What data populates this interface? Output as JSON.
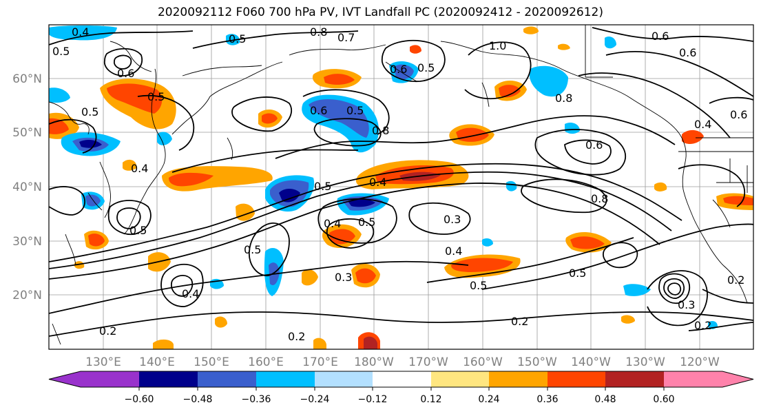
{
  "title": "2020092112 F060 700 hPa PV, IVT Landfall PC (2020092412 - 2020092612)",
  "map": {
    "lat_ticks": [
      "60°N",
      "50°N",
      "40°N",
      "30°N",
      "20°N"
    ],
    "lon_ticks": [
      "130°E",
      "140°E",
      "150°E",
      "160°E",
      "170°E",
      "180°W",
      "170°W",
      "160°W",
      "150°W",
      "140°W",
      "130°W",
      "120°W"
    ],
    "contour_labels": [
      "0.4",
      "0.5",
      "0.5",
      "0.8",
      "0.7",
      "1.0",
      "0.6",
      "0.6",
      "0.5",
      "0.5",
      "0.6",
      "0.5",
      "0.6",
      "0.8",
      "0.6",
      "0.6",
      "0.8",
      "0.5",
      "0.4",
      "0.4",
      "0.6",
      "0.8",
      "0.5",
      "0.4",
      "0.3",
      "0.4",
      "0.5",
      "0.5",
      "0.3",
      "0.4",
      "0.5",
      "0.2",
      "0.2",
      "0.3",
      "0.2",
      "0.5",
      "0.2",
      "0.2",
      "0.5",
      "0.4"
    ],
    "colors": {
      "light_orange": "#ffe680",
      "orange": "#ffa500",
      "red_orange": "#ff4500",
      "dark_red": "#b22222",
      "light_blue": "#b3e0ff",
      "cyan": "#00bfff",
      "medium_blue": "#3a5fcd",
      "navy": "#000080"
    }
  },
  "colorbar": {
    "ticks": [
      "−0.60",
      "−0.48",
      "−0.36",
      "−0.24",
      "−0.12",
      "0.12",
      "0.24",
      "0.36",
      "0.48",
      "0.60"
    ],
    "colors": [
      "#9932cc",
      "#00008b",
      "#3a5fcd",
      "#00bfff",
      "#b3e0ff",
      "#ffffff",
      "#ffe680",
      "#ffa500",
      "#ff4500",
      "#b22222",
      "#ff82ab"
    ]
  }
}
